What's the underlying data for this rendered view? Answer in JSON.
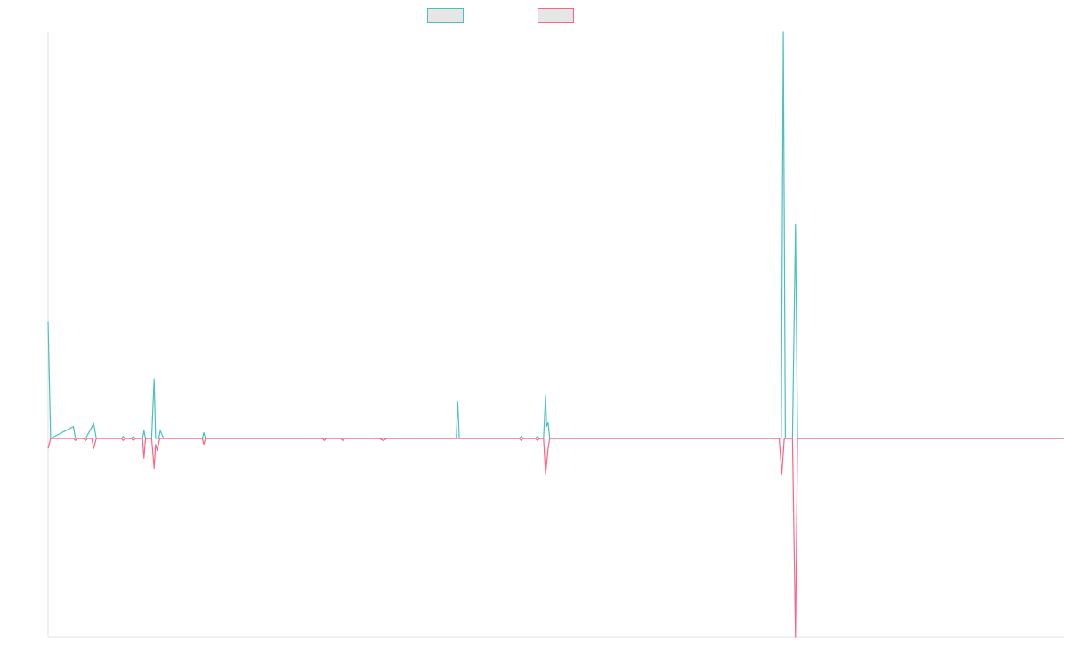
{
  "chart_data": {
    "type": "line",
    "title": "",
    "xlabel": "",
    "ylabel": "",
    "grid": false,
    "legend_position": "top-center",
    "x_range": [
      0,
      1000
    ],
    "ylim": [
      -1.0,
      2.05
    ],
    "colors": {
      "teal": "#4bc0c0",
      "pink": "#ff6384",
      "legend_fill": "#e6e6e6",
      "axis": "#e0e0e0"
    },
    "series": [
      {
        "name": "",
        "color": "#4bc0c0",
        "points": [
          [
            0,
            0.59
          ],
          [
            2.5,
            0
          ],
          [
            25,
            0.06
          ],
          [
            27,
            0
          ],
          [
            37,
            0
          ],
          [
            45,
            0.075
          ],
          [
            47.5,
            0
          ],
          [
            72,
            0
          ],
          [
            74,
            0.01
          ],
          [
            76,
            0
          ],
          [
            82,
            0
          ],
          [
            84,
            0.01
          ],
          [
            86,
            0
          ],
          [
            93,
            0
          ],
          [
            94.5,
            0.04
          ],
          [
            96,
            0
          ],
          [
            102,
            0
          ],
          [
            104.5,
            0.3
          ],
          [
            106,
            0
          ],
          [
            109,
            0
          ],
          [
            110.5,
            0.04
          ],
          [
            112,
            0.02
          ],
          [
            114,
            0
          ],
          [
            152,
            0
          ],
          [
            153.5,
            0.03
          ],
          [
            155,
            0
          ],
          [
            402,
            0
          ],
          [
            403.5,
            0.185
          ],
          [
            405,
            0
          ],
          [
            464,
            0
          ],
          [
            466,
            0.01
          ],
          [
            468,
            0
          ],
          [
            480,
            0
          ],
          [
            482,
            0.01
          ],
          [
            484,
            0
          ],
          [
            488,
            0
          ],
          [
            490,
            0.22
          ],
          [
            491,
            0.06
          ],
          [
            492.5,
            0.08
          ],
          [
            494,
            0
          ],
          [
            722,
            0
          ],
          [
            724,
            2.05
          ],
          [
            726,
            0
          ],
          [
            733,
            0
          ],
          [
            736,
            1.08
          ],
          [
            738,
            0
          ],
          [
            1000,
            0
          ]
        ]
      },
      {
        "name": "",
        "color": "#ff6384",
        "points": [
          [
            0,
            -0.05
          ],
          [
            2.5,
            0
          ],
          [
            25,
            0
          ],
          [
            27,
            -0.01
          ],
          [
            29,
            0
          ],
          [
            35,
            0
          ],
          [
            37,
            -0.01
          ],
          [
            39,
            0
          ],
          [
            43,
            0
          ],
          [
            45,
            -0.05
          ],
          [
            47.5,
            0
          ],
          [
            72,
            0
          ],
          [
            74,
            -0.01
          ],
          [
            76,
            0
          ],
          [
            82,
            0
          ],
          [
            84,
            -0.01
          ],
          [
            86,
            0
          ],
          [
            93,
            0
          ],
          [
            94.5,
            -0.1
          ],
          [
            96,
            0
          ],
          [
            102,
            0
          ],
          [
            104.5,
            -0.15
          ],
          [
            106,
            -0.03
          ],
          [
            107.5,
            -0.06
          ],
          [
            110,
            0
          ],
          [
            152,
            0
          ],
          [
            153.5,
            -0.03
          ],
          [
            155,
            0
          ],
          [
            270,
            0
          ],
          [
            272,
            -0.01
          ],
          [
            274,
            0
          ],
          [
            288,
            0
          ],
          [
            290,
            -0.01
          ],
          [
            292,
            0
          ],
          [
            326,
            0
          ],
          [
            330,
            -0.01
          ],
          [
            334,
            0
          ],
          [
            464,
            0
          ],
          [
            466,
            -0.01
          ],
          [
            468,
            0
          ],
          [
            480,
            0
          ],
          [
            482,
            -0.01
          ],
          [
            484,
            0
          ],
          [
            488,
            0
          ],
          [
            490,
            -0.18
          ],
          [
            492.5,
            -0.05
          ],
          [
            494,
            0
          ],
          [
            720,
            0
          ],
          [
            722.5,
            -0.18
          ],
          [
            725,
            0
          ],
          [
            733,
            0
          ],
          [
            736,
            -1.0
          ],
          [
            738,
            0
          ],
          [
            1000,
            0
          ]
        ]
      }
    ]
  }
}
